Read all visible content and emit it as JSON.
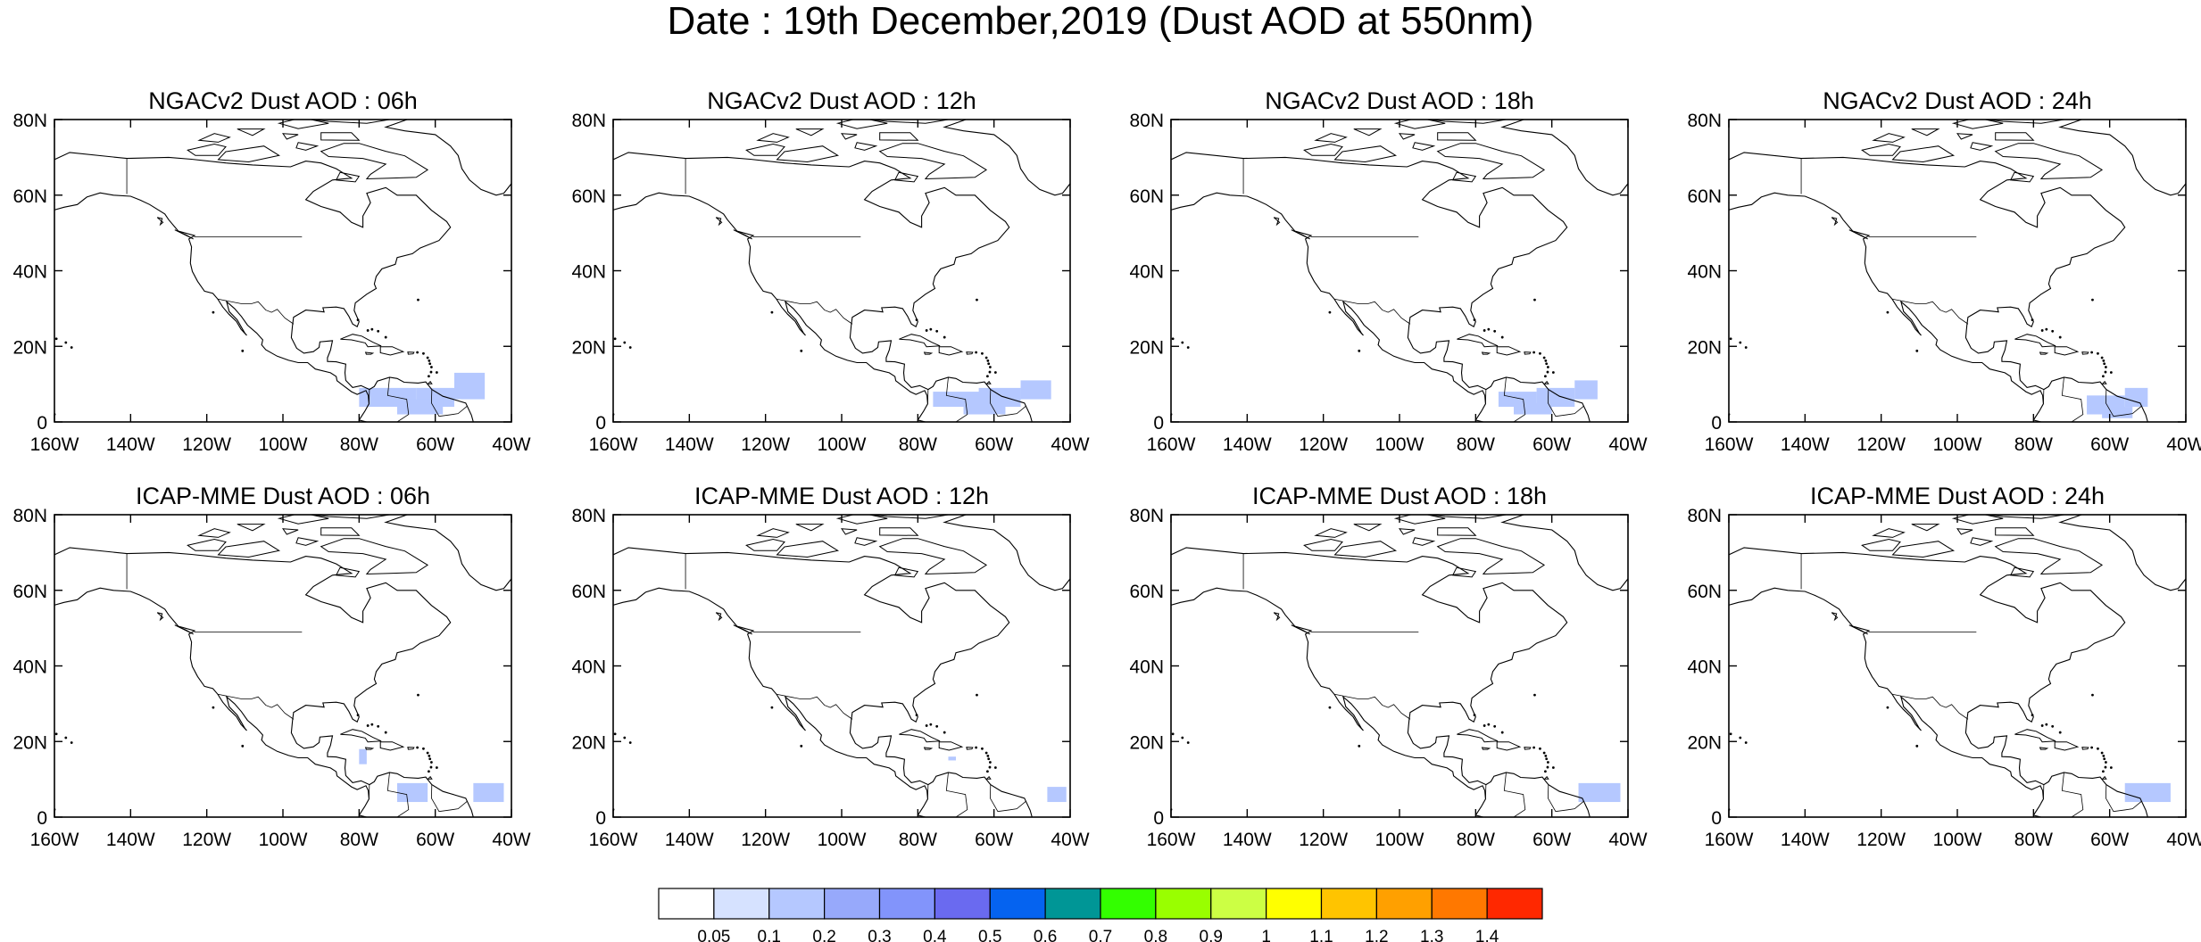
{
  "title": "Date : 19th December,2019 (Dust AOD at 550nm)",
  "panels": [
    {
      "title": "NGACv2 Dust AOD : 06h",
      "dust_patches": [
        [
          -80,
          -65,
          4,
          9,
          0.1
        ],
        [
          -65,
          -55,
          4,
          9,
          0.1
        ],
        [
          -55,
          -47,
          6,
          13,
          0.1
        ],
        [
          -70,
          -58,
          2,
          6,
          0.1
        ]
      ]
    },
    {
      "title": "NGACv2 Dust AOD : 12h",
      "dust_patches": [
        [
          -76,
          -62,
          4,
          8,
          0.1
        ],
        [
          -64,
          -53,
          4,
          9,
          0.1
        ],
        [
          -53,
          -45,
          6,
          11,
          0.1
        ],
        [
          -68,
          -57,
          2,
          5,
          0.1
        ]
      ]
    },
    {
      "title": "NGACv2 Dust AOD : 18h",
      "dust_patches": [
        [
          -74,
          -64,
          4,
          8,
          0.1
        ],
        [
          -64,
          -54,
          4,
          9,
          0.1
        ],
        [
          -54,
          -48,
          6,
          11,
          0.1
        ],
        [
          -70,
          -60,
          2,
          5,
          0.1
        ]
      ]
    },
    {
      "title": "NGACv2 Dust AOD : 24h",
      "dust_patches": [
        [
          -66,
          -56,
          2,
          7,
          0.1
        ],
        [
          -56,
          -50,
          4,
          9,
          0.1
        ],
        [
          -62,
          -54,
          1,
          4,
          0.1
        ]
      ]
    },
    {
      "title": "ICAP-MME Dust AOD : 06h",
      "dust_patches": [
        [
          -80,
          -78,
          14,
          18,
          0.1
        ],
        [
          -70,
          -62,
          4,
          9,
          0.1
        ],
        [
          -50,
          -42,
          4,
          9,
          0.1
        ]
      ]
    },
    {
      "title": "ICAP-MME Dust AOD : 12h",
      "dust_patches": [
        [
          -72,
          -70,
          15,
          16,
          0.1
        ],
        [
          -46,
          -41,
          4,
          8,
          0.1
        ]
      ]
    },
    {
      "title": "ICAP-MME Dust AOD : 18h",
      "dust_patches": [
        [
          -53,
          -42,
          4,
          9,
          0.1
        ]
      ]
    },
    {
      "title": "ICAP-MME Dust AOD : 24h",
      "dust_patches": [
        [
          -56,
          -44,
          4,
          9,
          0.1
        ]
      ]
    }
  ],
  "axes": {
    "lon_ticks": [
      "160W",
      "140W",
      "120W",
      "100W",
      "80W",
      "60W",
      "40W"
    ],
    "lat_ticks": [
      "80N",
      "60N",
      "40N",
      "20N",
      "0"
    ],
    "lon_range": [
      -160,
      -40
    ],
    "lat_range": [
      0,
      80
    ]
  },
  "colorbar": {
    "colors": [
      "#ffffff",
      "#d6e2ff",
      "#b5c8ff",
      "#97a9fb",
      "#8294fb",
      "#6a6af0",
      "#0563f0",
      "#009696",
      "#33ff00",
      "#99ff00",
      "#ccff44",
      "#ffff00",
      "#ffc400",
      "#ffa000",
      "#ff7800",
      "#ff2800"
    ],
    "labels": [
      "0.05",
      "0.1",
      "0.2",
      "0.3",
      "0.4",
      "0.5",
      "0.6",
      "0.7",
      "0.8",
      "0.9",
      "1",
      "1.1",
      "1.2",
      "1.3",
      "1.4"
    ]
  }
}
